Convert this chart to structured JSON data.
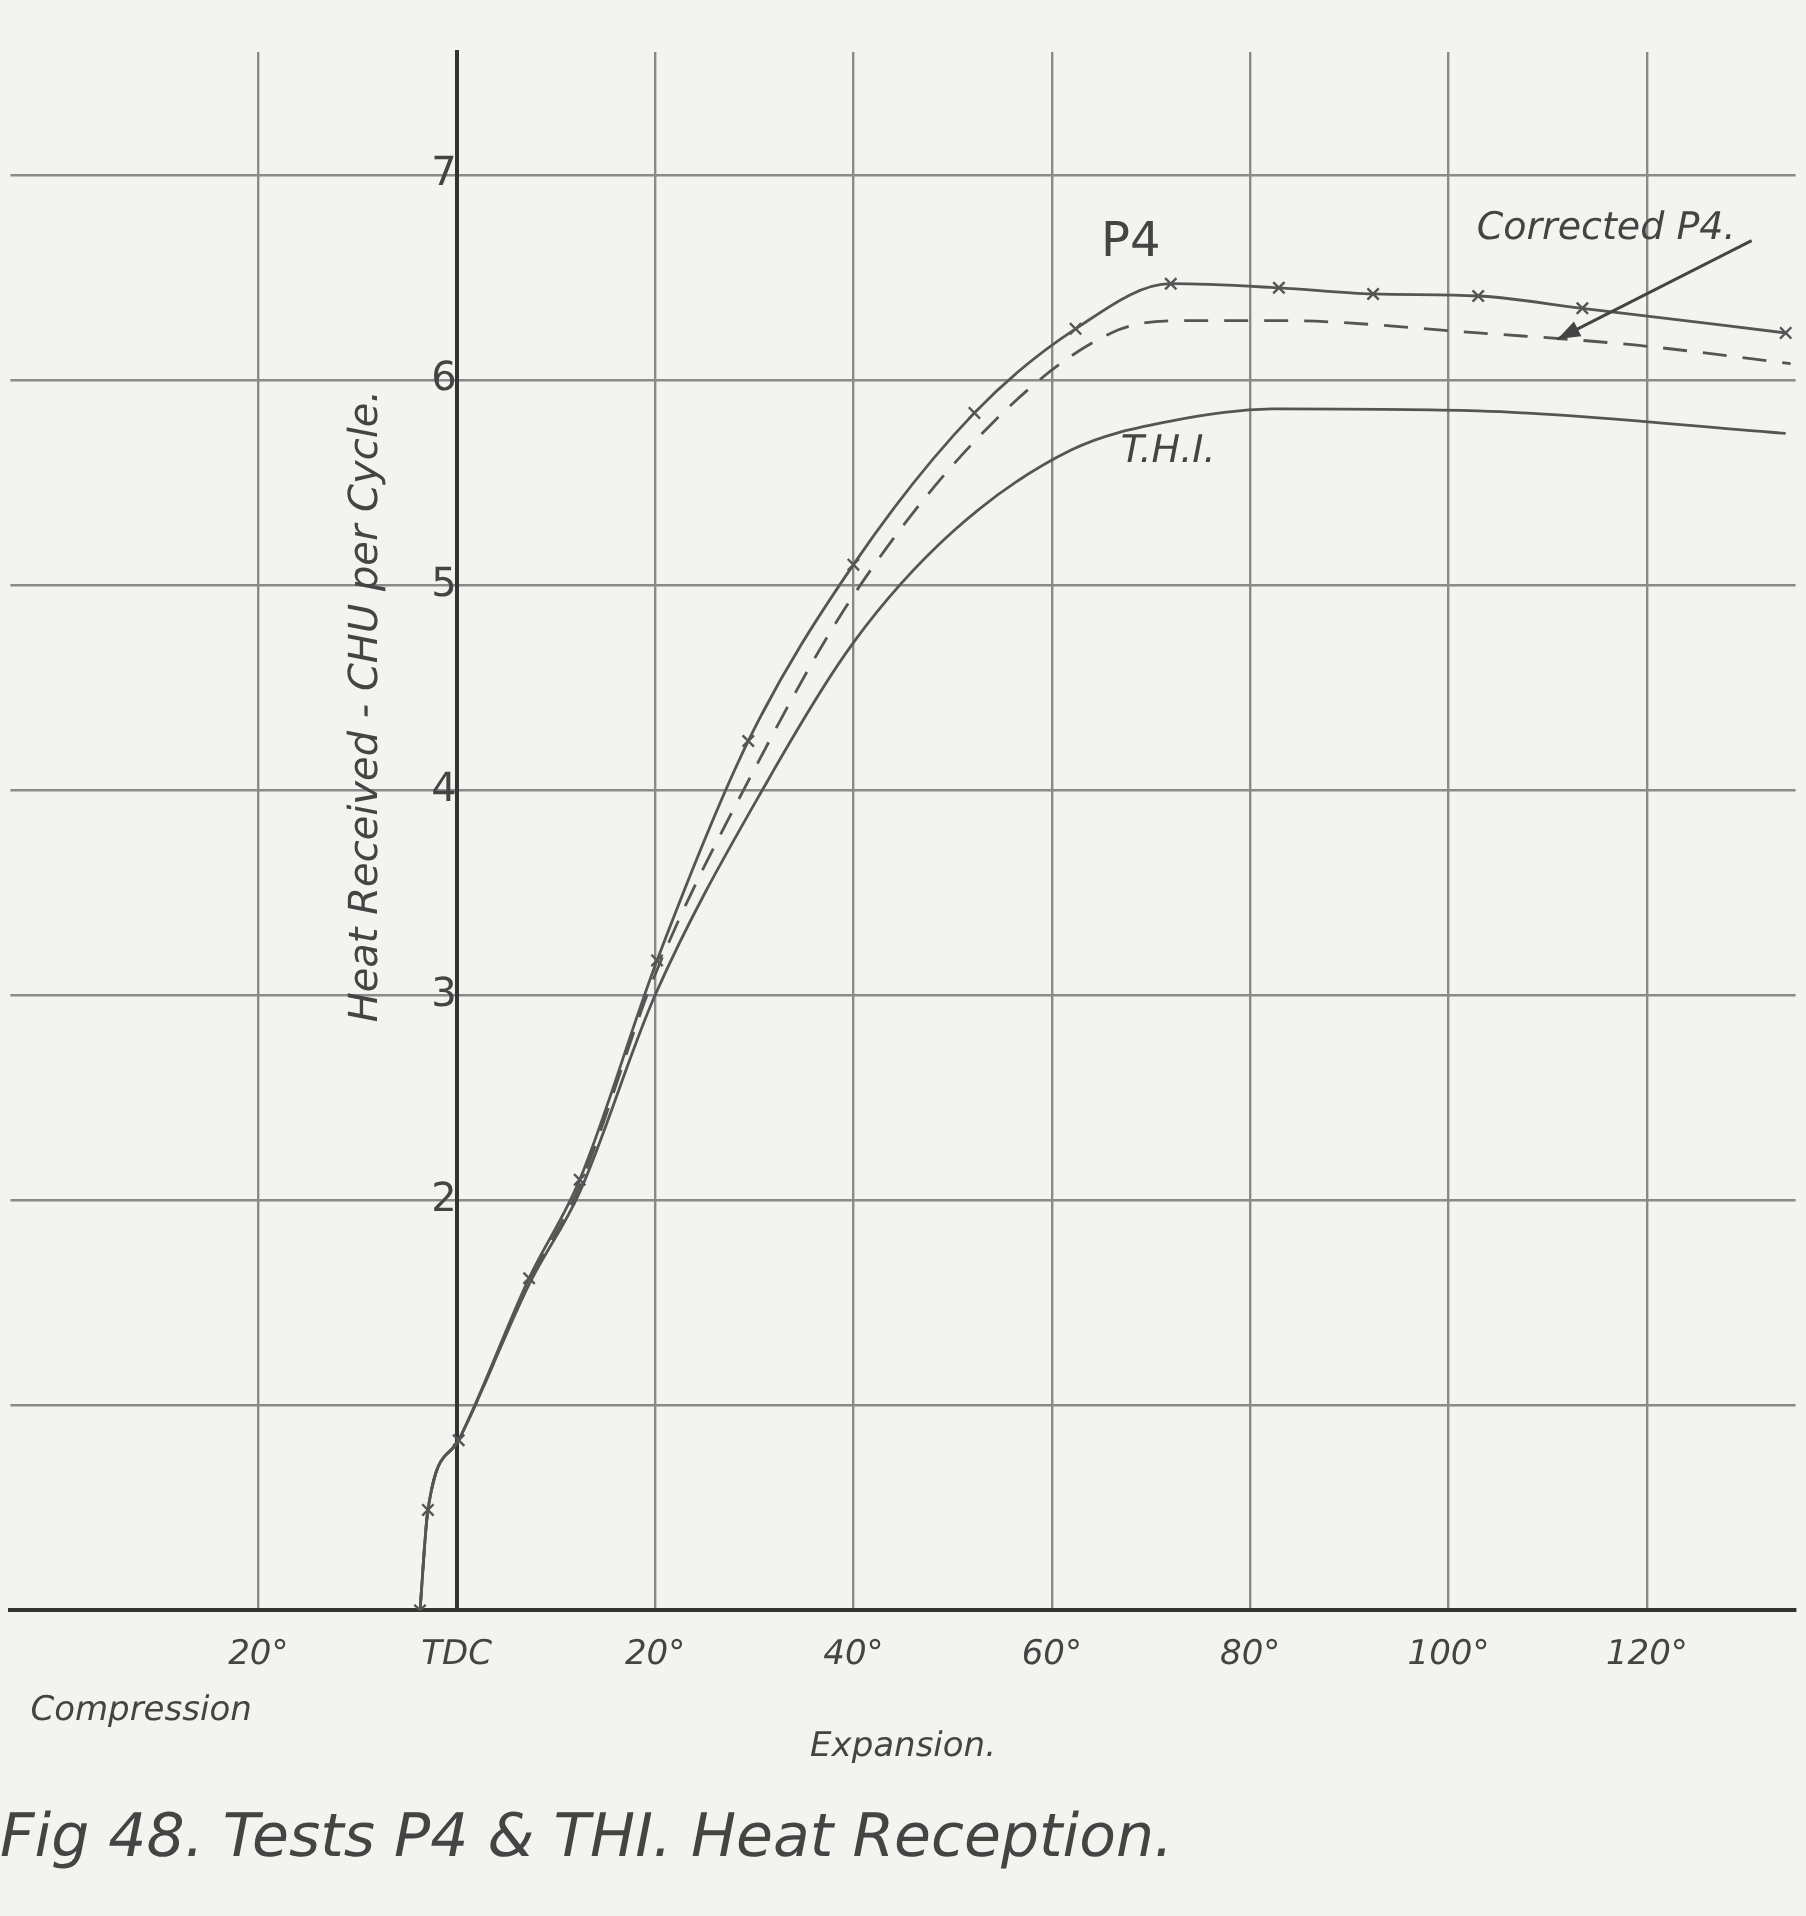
{
  "chart_data": {
    "type": "line",
    "title": "Fig 48. Tests P4 & THI. Heat Reception.",
    "xlabel": "Expansion.",
    "ylabel": "Heat Received - CHU per Cycle.",
    "annotations": [
      "Compression"
    ],
    "xlim": [
      -45,
      135
    ],
    "ylim": [
      0,
      7.6
    ],
    "xticks": [
      {
        "value": -20,
        "label": "20°"
      },
      {
        "value": 0,
        "label": "TDC"
      },
      {
        "value": 20,
        "label": "20°"
      },
      {
        "value": 40,
        "label": "40°"
      },
      {
        "value": 60,
        "label": "60°"
      },
      {
        "value": 80,
        "label": "80°"
      },
      {
        "value": 100,
        "label": "100°"
      },
      {
        "value": 120,
        "label": "120°"
      }
    ],
    "yticks": [
      {
        "value": 1,
        "label": null
      },
      2,
      3,
      4,
      5,
      6,
      7
    ],
    "grid": true,
    "legend": false,
    "series": [
      {
        "name": "P4",
        "color": "#555555",
        "marker": "cross",
        "line_style": "solid",
        "x": [
          -3.7,
          -2.9,
          0.2,
          7.3,
          12.4,
          20.2,
          29.4,
          40,
          52.2,
          62.4,
          72,
          82.9,
          92.4,
          103,
          113.5,
          134
        ],
        "values": [
          0,
          0.49,
          0.83,
          1.62,
          2.1,
          3.17,
          4.24,
          5.1,
          5.84,
          6.25,
          6.47,
          6.45,
          6.42,
          6.41,
          6.35,
          6.23
        ]
      },
      {
        "name": "Corrected P4.",
        "color": "#555555",
        "marker": "none",
        "line_style": "dashed",
        "x": [
          -3.7,
          -2.9,
          0.2,
          7.3,
          12.4,
          20,
          30,
          40,
          54,
          66,
          73,
          83,
          103,
          119,
          134.5
        ],
        "values": [
          0,
          0.49,
          0.83,
          1.6,
          2.07,
          3.1,
          4.1,
          4.95,
          5.79,
          6.23,
          6.29,
          6.29,
          6.23,
          6.17,
          6.08
        ]
      },
      {
        "name": "T.H.I.",
        "color": "#555555",
        "marker": "none",
        "line_style": "solid",
        "x": [
          -3.7,
          -2.9,
          0.2,
          7.3,
          12.4,
          20,
          31.4,
          40,
          50,
          62,
          72,
          83,
          103,
          134
        ],
        "values": [
          0,
          0.49,
          0.83,
          1.59,
          2.04,
          3.0,
          4.05,
          4.72,
          5.26,
          5.66,
          5.8,
          5.86,
          5.85,
          5.74
        ]
      }
    ]
  }
}
